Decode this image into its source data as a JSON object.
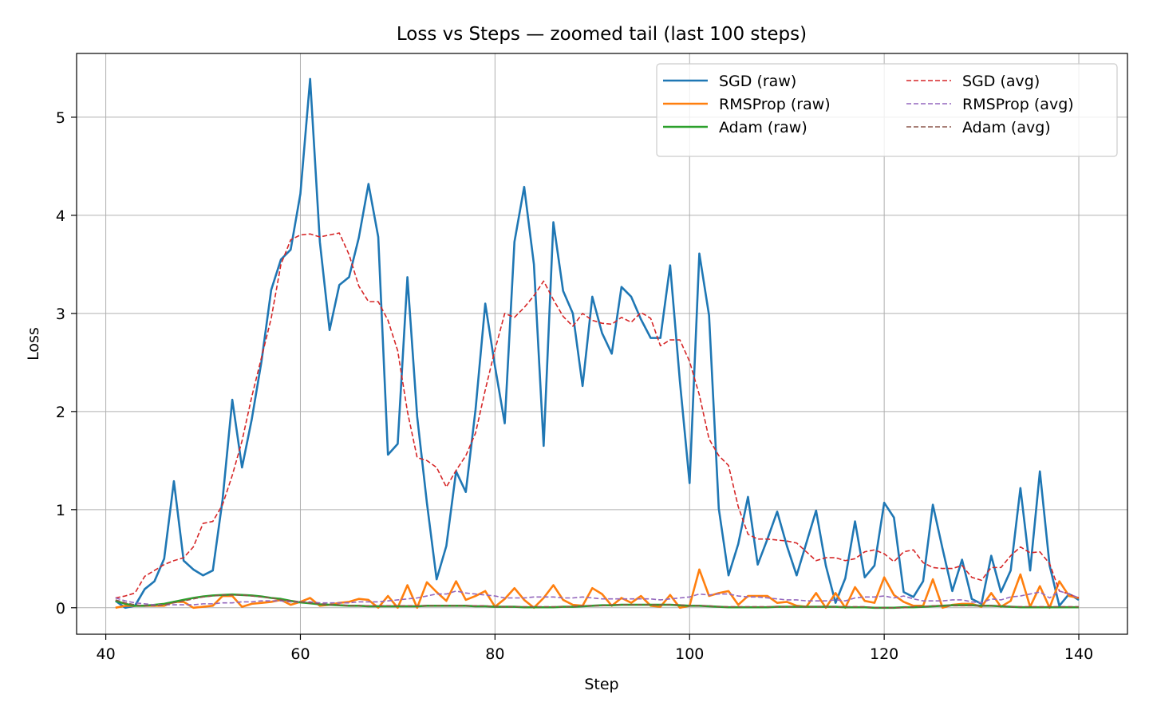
{
  "chart_data": {
    "type": "line",
    "title": "Loss vs Steps — zoomed tail (last 100 steps)",
    "xlabel": "Step",
    "ylabel": "Loss",
    "xlim": [
      37,
      145
    ],
    "ylim": [
      -0.27,
      5.65
    ],
    "xticks": [
      40,
      60,
      80,
      100,
      120,
      140
    ],
    "yticks": [
      0,
      1,
      2,
      3,
      4,
      5
    ],
    "grid": true,
    "legend": {
      "placement": "top-right",
      "columns": 2
    },
    "x": [
      41,
      42,
      43,
      44,
      45,
      46,
      47,
      48,
      49,
      50,
      51,
      52,
      53,
      54,
      55,
      56,
      57,
      58,
      59,
      60,
      61,
      62,
      63,
      64,
      65,
      66,
      67,
      68,
      69,
      70,
      71,
      72,
      73,
      74,
      75,
      76,
      77,
      78,
      79,
      80,
      81,
      82,
      83,
      84,
      85,
      86,
      87,
      88,
      89,
      90,
      91,
      92,
      93,
      94,
      95,
      96,
      97,
      98,
      99,
      100,
      101,
      102,
      103,
      104,
      105,
      106,
      107,
      108,
      109,
      110,
      111,
      112,
      113,
      114,
      115,
      116,
      117,
      118,
      119,
      120,
      121,
      122,
      123,
      124,
      125,
      126,
      127,
      128,
      129,
      130,
      131,
      132,
      133,
      134,
      135,
      136,
      137,
      138,
      139,
      140
    ],
    "series": [
      {
        "name": "SGD (raw)",
        "color": "#1f77b4",
        "dashed": false,
        "values": [
          0.07,
          0.0,
          0.02,
          0.19,
          0.27,
          0.5,
          1.29,
          0.48,
          0.39,
          0.33,
          0.38,
          1.1,
          2.12,
          1.43,
          1.92,
          2.51,
          3.24,
          3.55,
          3.65,
          4.22,
          5.39,
          3.73,
          2.83,
          3.29,
          3.37,
          3.77,
          4.32,
          3.78,
          1.56,
          1.67,
          3.37,
          1.95,
          1.07,
          0.29,
          0.63,
          1.39,
          1.18,
          2.02,
          3.1,
          2.46,
          1.88,
          3.73,
          4.29,
          3.5,
          1.65,
          3.93,
          3.23,
          3.0,
          2.26,
          3.17,
          2.8,
          2.59,
          3.27,
          3.17,
          2.94,
          2.75,
          2.75,
          3.49,
          2.31,
          1.27,
          3.61,
          2.98,
          1.01,
          0.33,
          0.65,
          1.13,
          0.44,
          0.7,
          0.98,
          0.63,
          0.33,
          0.66,
          0.99,
          0.43,
          0.05,
          0.3,
          0.88,
          0.31,
          0.43,
          1.07,
          0.92,
          0.16,
          0.11,
          0.27,
          1.05,
          0.6,
          0.17,
          0.49,
          0.09,
          0.04,
          0.53,
          0.16,
          0.38,
          1.22,
          0.38,
          1.39,
          0.43,
          0.02,
          0.14,
          0.08
        ]
      },
      {
        "name": "RMSProp (raw)",
        "color": "#ff7f0e",
        "dashed": false,
        "values": [
          0.0,
          0.02,
          0.02,
          0.02,
          0.02,
          0.02,
          0.06,
          0.06,
          0.0,
          0.01,
          0.02,
          0.12,
          0.12,
          0.01,
          0.04,
          0.05,
          0.06,
          0.08,
          0.03,
          0.06,
          0.1,
          0.02,
          0.03,
          0.05,
          0.06,
          0.09,
          0.08,
          0.0,
          0.12,
          0.0,
          0.23,
          0.0,
          0.26,
          0.16,
          0.07,
          0.27,
          0.08,
          0.12,
          0.17,
          0.01,
          0.09,
          0.2,
          0.08,
          0.0,
          0.1,
          0.23,
          0.08,
          0.03,
          0.02,
          0.2,
          0.14,
          0.02,
          0.1,
          0.05,
          0.12,
          0.02,
          0.01,
          0.13,
          0.0,
          0.02,
          0.39,
          0.12,
          0.15,
          0.17,
          0.03,
          0.12,
          0.12,
          0.12,
          0.05,
          0.06,
          0.02,
          0.01,
          0.15,
          0.0,
          0.15,
          0.0,
          0.21,
          0.07,
          0.05,
          0.31,
          0.13,
          0.06,
          0.02,
          0.02,
          0.29,
          0.0,
          0.03,
          0.04,
          0.04,
          0.01,
          0.15,
          0.01,
          0.07,
          0.34,
          0.01,
          0.22,
          0.0,
          0.27,
          0.12,
          0.1
        ]
      },
      {
        "name": "Adam (raw)",
        "color": "#2ca02c",
        "dashed": false,
        "values": [
          0.07,
          0.04,
          0.02,
          0.02,
          0.03,
          0.04,
          0.06,
          0.08,
          0.1,
          0.115,
          0.125,
          0.13,
          0.135,
          0.13,
          0.125,
          0.115,
          0.1,
          0.09,
          0.07,
          0.055,
          0.045,
          0.035,
          0.03,
          0.025,
          0.02,
          0.02,
          0.015,
          0.015,
          0.015,
          0.015,
          0.015,
          0.015,
          0.02,
          0.02,
          0.02,
          0.02,
          0.02,
          0.015,
          0.015,
          0.01,
          0.01,
          0.01,
          0.005,
          0.005,
          0.005,
          0.005,
          0.01,
          0.01,
          0.015,
          0.02,
          0.025,
          0.025,
          0.03,
          0.03,
          0.03,
          0.03,
          0.03,
          0.03,
          0.025,
          0.02,
          0.02,
          0.015,
          0.01,
          0.005,
          0.005,
          0.005,
          0.005,
          0.005,
          0.01,
          0.01,
          0.01,
          0.01,
          0.01,
          0.01,
          0.01,
          0.005,
          0.005,
          0.005,
          0.0,
          0.0,
          0.0,
          0.005,
          0.005,
          0.01,
          0.015,
          0.02,
          0.025,
          0.025,
          0.025,
          0.02,
          0.02,
          0.015,
          0.01,
          0.005,
          0.005,
          0.005,
          0.005,
          0.005,
          0.005,
          0.005
        ]
      },
      {
        "name": "SGD (avg)",
        "color": "#d62728",
        "dashed": true,
        "values": [
          0.1,
          0.12,
          0.15,
          0.32,
          0.38,
          0.44,
          0.48,
          0.51,
          0.62,
          0.86,
          0.88,
          1.05,
          1.35,
          1.7,
          2.15,
          2.55,
          2.95,
          3.5,
          3.75,
          3.8,
          3.81,
          3.78,
          3.8,
          3.82,
          3.6,
          3.28,
          3.12,
          3.12,
          2.93,
          2.62,
          2.0,
          1.53,
          1.5,
          1.43,
          1.23,
          1.4,
          1.55,
          1.78,
          2.22,
          2.63,
          3.0,
          2.96,
          3.06,
          3.18,
          3.33,
          3.14,
          2.97,
          2.87,
          3.0,
          2.93,
          2.9,
          2.89,
          2.96,
          2.91,
          3.01,
          2.95,
          2.67,
          2.73,
          2.73,
          2.51,
          2.17,
          1.72,
          1.55,
          1.45,
          1.03,
          0.75,
          0.7,
          0.7,
          0.69,
          0.68,
          0.66,
          0.57,
          0.48,
          0.51,
          0.51,
          0.48,
          0.5,
          0.57,
          0.59,
          0.55,
          0.47,
          0.57,
          0.59,
          0.46,
          0.41,
          0.4,
          0.4,
          0.43,
          0.31,
          0.28,
          0.41,
          0.41,
          0.53,
          0.62,
          0.56,
          0.57,
          0.45,
          0.17,
          0.14,
          0.1
        ]
      },
      {
        "name": "RMSProp (avg)",
        "color": "#9467bd",
        "dashed": true,
        "values": [
          0.1,
          0.07,
          0.05,
          0.04,
          0.03,
          0.03,
          0.03,
          0.03,
          0.03,
          0.04,
          0.04,
          0.05,
          0.05,
          0.06,
          0.06,
          0.07,
          0.07,
          0.07,
          0.06,
          0.06,
          0.06,
          0.05,
          0.05,
          0.05,
          0.05,
          0.06,
          0.06,
          0.06,
          0.07,
          0.08,
          0.09,
          0.1,
          0.12,
          0.14,
          0.14,
          0.17,
          0.15,
          0.14,
          0.13,
          0.12,
          0.1,
          0.1,
          0.1,
          0.11,
          0.11,
          0.11,
          0.1,
          0.1,
          0.11,
          0.1,
          0.09,
          0.09,
          0.09,
          0.09,
          0.09,
          0.09,
          0.08,
          0.09,
          0.1,
          0.11,
          0.14,
          0.13,
          0.14,
          0.14,
          0.12,
          0.11,
          0.11,
          0.1,
          0.09,
          0.08,
          0.08,
          0.07,
          0.07,
          0.07,
          0.08,
          0.07,
          0.1,
          0.11,
          0.11,
          0.12,
          0.1,
          0.12,
          0.09,
          0.07,
          0.07,
          0.07,
          0.08,
          0.08,
          0.06,
          0.05,
          0.09,
          0.08,
          0.11,
          0.12,
          0.14,
          0.16,
          0.1,
          0.17,
          0.14,
          0.1
        ]
      },
      {
        "name": "Adam (avg)",
        "color": "#8c564b",
        "dashed": true,
        "values": [
          0.08,
          0.05,
          0.03,
          0.02,
          0.02,
          0.03,
          0.05,
          0.07,
          0.09,
          0.11,
          0.12,
          0.13,
          0.13,
          0.13,
          0.12,
          0.11,
          0.1,
          0.08,
          0.07,
          0.06,
          0.05,
          0.04,
          0.03,
          0.03,
          0.02,
          0.02,
          0.02,
          0.02,
          0.02,
          0.02,
          0.02,
          0.02,
          0.02,
          0.02,
          0.02,
          0.02,
          0.02,
          0.02,
          0.02,
          0.01,
          0.01,
          0.01,
          0.01,
          0.01,
          0.01,
          0.01,
          0.01,
          0.01,
          0.02,
          0.02,
          0.02,
          0.03,
          0.03,
          0.03,
          0.03,
          0.03,
          0.03,
          0.03,
          0.03,
          0.02,
          0.02,
          0.02,
          0.01,
          0.01,
          0.01,
          0.01,
          0.01,
          0.01,
          0.01,
          0.01,
          0.01,
          0.01,
          0.01,
          0.01,
          0.01,
          0.01,
          0.01,
          0.01,
          0.0,
          0.0,
          0.0,
          0.0,
          0.01,
          0.01,
          0.02,
          0.02,
          0.02,
          0.02,
          0.02,
          0.02,
          0.02,
          0.02,
          0.01,
          0.01,
          0.01,
          0.01,
          0.01,
          0.01,
          0.01,
          0.01
        ]
      }
    ]
  }
}
